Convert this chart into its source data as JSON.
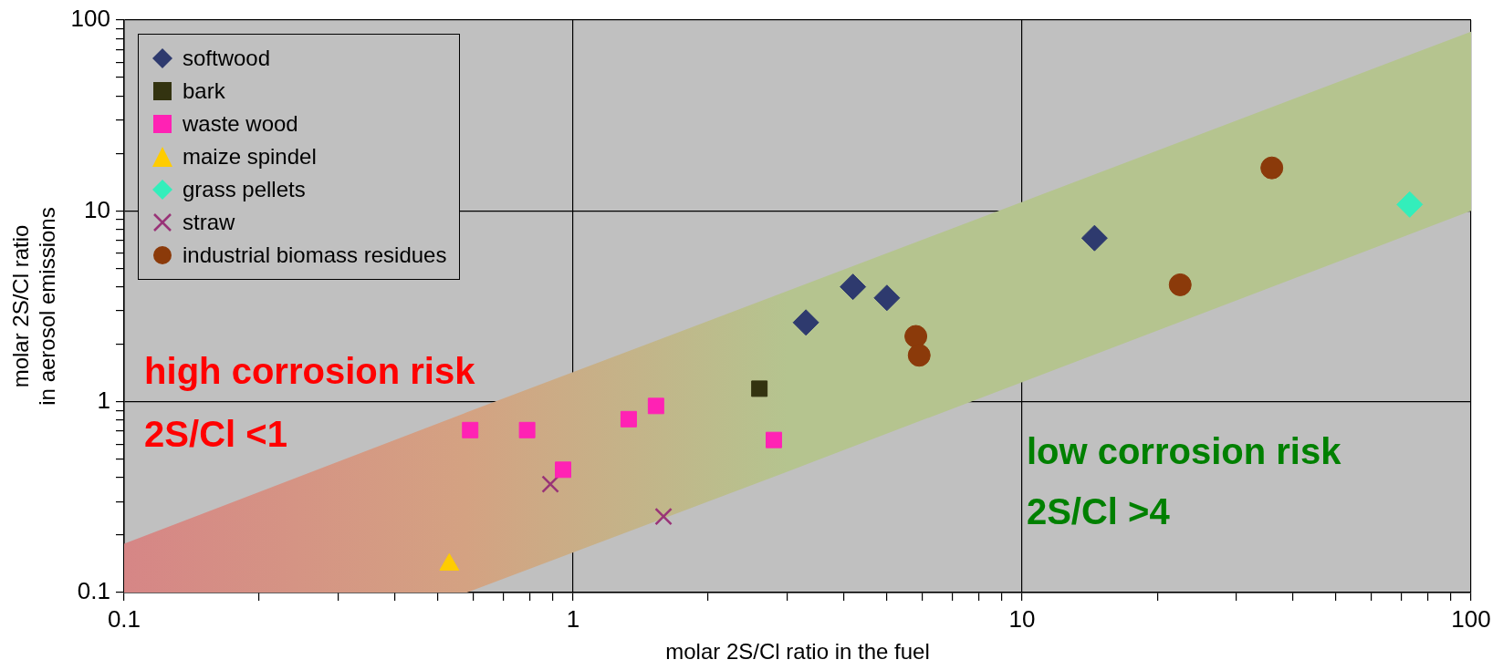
{
  "chart_data": {
    "type": "scatter",
    "xlabel": "molar 2S/Cl ratio in the fuel",
    "ylabel": "molar 2S/Cl ratio\nin aerosol emissions",
    "log": "xy",
    "grid": true,
    "legend": "top left",
    "xlim": [
      0.1,
      100
    ],
    "ylim": [
      0.1,
      100
    ],
    "xticks": [
      0.1,
      {
        "value": 0.2,
        "label": null
      },
      {
        "value": 0.3,
        "label": null
      },
      {
        "value": 0.4,
        "label": null
      },
      {
        "value": 0.5,
        "label": null
      },
      {
        "value": 0.6,
        "label": null
      },
      {
        "value": 0.7,
        "label": null
      },
      {
        "value": 0.8,
        "label": null
      },
      {
        "value": 0.9,
        "label": null
      },
      1,
      {
        "value": 2,
        "label": null
      },
      {
        "value": 3,
        "label": null
      },
      {
        "value": 4,
        "label": null
      },
      {
        "value": 5,
        "label": null
      },
      {
        "value": 6,
        "label": null
      },
      {
        "value": 7,
        "label": null
      },
      {
        "value": 8,
        "label": null
      },
      {
        "value": 9,
        "label": null
      },
      10,
      {
        "value": 20,
        "label": null
      },
      {
        "value": 30,
        "label": null
      },
      {
        "value": 40,
        "label": null
      },
      {
        "value": 50,
        "label": null
      },
      {
        "value": 60,
        "label": null
      },
      {
        "value": 70,
        "label": null
      },
      {
        "value": 80,
        "label": null
      },
      {
        "value": 90,
        "label": null
      },
      100
    ],
    "yticks": [
      0.1,
      {
        "value": 0.2,
        "label": null
      },
      {
        "value": 0.3,
        "label": null
      },
      {
        "value": 0.4,
        "label": null
      },
      {
        "value": 0.5,
        "label": null
      },
      {
        "value": 0.6,
        "label": null
      },
      {
        "value": 0.7,
        "label": null
      },
      {
        "value": 0.8,
        "label": null
      },
      {
        "value": 0.9,
        "label": null
      },
      1,
      {
        "value": 2,
        "label": null
      },
      {
        "value": 3,
        "label": null
      },
      {
        "value": 4,
        "label": null
      },
      {
        "value": 5,
        "label": null
      },
      {
        "value": 6,
        "label": null
      },
      {
        "value": 7,
        "label": null
      },
      {
        "value": 8,
        "label": null
      },
      {
        "value": 9,
        "label": null
      },
      10,
      {
        "value": 20,
        "label": null
      },
      {
        "value": 30,
        "label": null
      },
      {
        "value": 40,
        "label": null
      },
      {
        "value": 50,
        "label": null
      },
      {
        "value": 60,
        "label": null
      },
      {
        "value": 70,
        "label": null
      },
      {
        "value": 80,
        "label": null
      },
      {
        "value": 90,
        "label": null
      },
      100
    ],
    "annotations": [
      "high corrosion risk",
      "2S/Cl <1",
      "low corrosion risk",
      "2S/Cl >4"
    ],
    "series": [
      {
        "type": "area",
        "x": [
          0.1,
          0.58,
          3,
          100
        ],
        "values": [
          null,
          null,
          null,
          null
        ],
        "lower": [
          0.1,
          0.1,
          0.43,
          10
        ],
        "upper": [
          0.18,
          0.88,
          3.8,
          87
        ],
        "colors": [
          "#d68686",
          "#d4a282",
          "#b5c48f",
          "#b5c48f"
        ]
      },
      {
        "name": "softwood",
        "marker": "diamond",
        "color": "#2e3a6e",
        "x": [
          3.3,
          4.2,
          5.0,
          14.5
        ],
        "values": [
          2.6,
          4.0,
          3.5,
          7.2
        ]
      },
      {
        "name": "bark",
        "marker": "square",
        "color": "#333310",
        "x": [
          2.6
        ],
        "values": [
          1.17
        ]
      },
      {
        "name": "waste wood",
        "marker": "square",
        "color": "#ff22b4",
        "x": [
          0.59,
          0.79,
          0.95,
          1.33,
          1.53,
          2.8
        ],
        "values": [
          0.71,
          0.71,
          0.44,
          0.81,
          0.95,
          0.63
        ]
      },
      {
        "name": "maize spindel",
        "marker": "triangle",
        "color": "#ffcc00",
        "x": [
          0.53
        ],
        "values": [
          0.14
        ]
      },
      {
        "name": "grass pellets",
        "marker": "diamond",
        "color": "#33eebb",
        "x": [
          73
        ],
        "values": [
          10.8
        ]
      },
      {
        "name": "straw",
        "marker": "cross",
        "color": "#993377",
        "x": [
          0.89,
          1.59
        ],
        "values": [
          0.37,
          0.25
        ]
      },
      {
        "name": "industrial biomass residues",
        "marker": "circle",
        "color": "#8b3a0a",
        "x": [
          5.8,
          5.9,
          22.5,
          36
        ],
        "values": [
          2.2,
          1.75,
          4.1,
          16.8
        ]
      }
    ]
  }
}
